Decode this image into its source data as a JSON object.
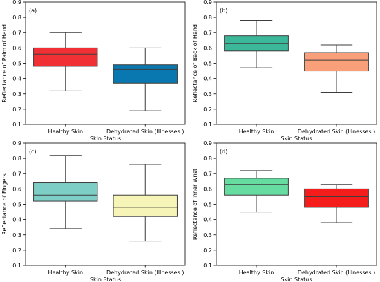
{
  "chart_data": [
    {
      "type": "box",
      "panel_label": "(a)",
      "categories": [
        "Healthy Skin",
        "Dehydrated Skin (Illnesses )"
      ],
      "xlabel": "Skin Status",
      "ylabel": "Reflectance of Palm of Hand",
      "ylim": [
        0.1,
        0.9
      ],
      "yticks": [
        "0.1",
        "0.2",
        "0.3",
        "0.4",
        "0.5",
        "0.6",
        "0.7",
        "0.8",
        "0.9"
      ],
      "boxes": [
        {
          "category": "Healthy Skin",
          "whisker_low": 0.32,
          "q1": 0.48,
          "median": 0.56,
          "q3": 0.6,
          "whisker_high": 0.7,
          "color": "#f03035"
        },
        {
          "category": "Dehydrated Skin (Illnesses )",
          "whisker_low": 0.19,
          "q1": 0.37,
          "median": 0.46,
          "q3": 0.49,
          "whisker_high": 0.6,
          "color": "#0a78b0"
        }
      ]
    },
    {
      "type": "box",
      "panel_label": "(b)",
      "categories": [
        "Healthy Skin",
        "Dehydrated Skin (Illnesses )"
      ],
      "xlabel": "Skin Status",
      "ylabel": "Reflectance of Back of Hand",
      "ylim": [
        0.1,
        0.9
      ],
      "yticks": [
        "0.1",
        "0.2",
        "0.3",
        "0.4",
        "0.5",
        "0.6",
        "0.7",
        "0.8",
        "0.9"
      ],
      "boxes": [
        {
          "category": "Healthy Skin",
          "whisker_low": 0.47,
          "q1": 0.58,
          "median": 0.63,
          "q3": 0.68,
          "whisker_high": 0.78,
          "color": "#3bb89a"
        },
        {
          "category": "Dehydrated Skin (Illnesses )",
          "whisker_low": 0.31,
          "q1": 0.45,
          "median": 0.52,
          "q3": 0.57,
          "whisker_high": 0.62,
          "color": "#f9a07a"
        }
      ]
    },
    {
      "type": "box",
      "panel_label": "(c)",
      "categories": [
        "Healthy Skin",
        "Dehydrated Skin (Illnesses )"
      ],
      "xlabel": "Skin Status",
      "ylabel": "Reflectance of Fingers",
      "ylim": [
        0.1,
        0.9
      ],
      "yticks": [
        "0.1",
        "0.2",
        "0.3",
        "0.4",
        "0.5",
        "0.6",
        "0.7",
        "0.8",
        "0.9"
      ],
      "boxes": [
        {
          "category": "Healthy Skin",
          "whisker_low": 0.34,
          "q1": 0.52,
          "median": 0.56,
          "q3": 0.64,
          "whisker_high": 0.82,
          "color": "#7dcfc6"
        },
        {
          "category": "Dehydrated Skin (Illnesses )",
          "whisker_low": 0.26,
          "q1": 0.42,
          "median": 0.48,
          "q3": 0.56,
          "whisker_high": 0.76,
          "color": "#f7f4b8"
        }
      ]
    },
    {
      "type": "box",
      "panel_label": "(d)",
      "categories": [
        "Healthy Skin",
        "Dehydrated Skin (Illnesses )"
      ],
      "xlabel": "Skin Status",
      "ylabel": "Reflectance of Inner Wrist",
      "ylim": [
        0.1,
        0.9
      ],
      "yticks": [
        "0.1",
        "0.2",
        "0.3",
        "0.4",
        "0.5",
        "0.6",
        "0.7",
        "0.8",
        "0.9"
      ],
      "boxes": [
        {
          "category": "Healthy Skin",
          "whisker_low": 0.45,
          "q1": 0.56,
          "median": 0.63,
          "q3": 0.67,
          "whisker_high": 0.72,
          "color": "#66dca0"
        },
        {
          "category": "Dehydrated Skin (Illnesses )",
          "whisker_low": 0.38,
          "q1": 0.48,
          "median": 0.55,
          "q3": 0.6,
          "whisker_high": 0.63,
          "color": "#f51c1c"
        }
      ]
    }
  ]
}
